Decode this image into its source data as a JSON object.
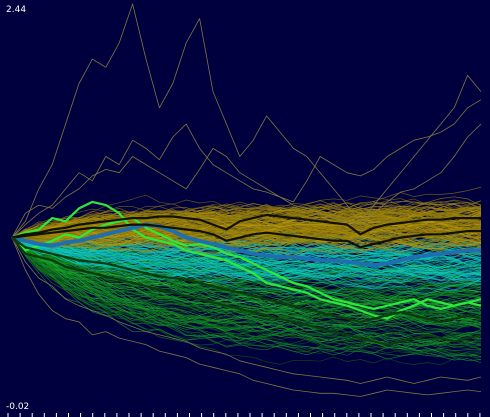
{
  "chart_data": {
    "type": "line",
    "y_max_label": "2.44",
    "y_min_label": "-0.02",
    "ylim": [
      -0.02,
      2.44
    ],
    "x_count": 36,
    "grid": false,
    "legend": "none",
    "colors": {
      "background": "#01003f",
      "yellow_band": "#b39400",
      "yellow_band_alt": "#8f7a10",
      "cyan_band": "#00d4c8",
      "green_band": "#12a12a",
      "green_bright": "#33ff44",
      "blue_bold": "#1f6fb0",
      "outliers": "#8a8440",
      "axis": "#ffffff"
    },
    "bold_series": [
      {
        "color": "#2ee83a",
        "values": [
          1.0,
          1.03,
          1.05,
          1.12,
          1.1,
          1.18,
          1.22,
          1.2,
          1.15,
          1.05,
          1.0,
          0.98,
          0.96,
          0.92,
          0.9,
          0.88,
          0.86,
          0.82,
          0.78,
          0.72,
          0.7,
          0.68,
          0.66,
          0.62,
          0.6,
          0.58,
          0.55,
          0.52,
          0.5,
          0.55,
          0.58,
          0.62,
          0.6,
          0.58,
          0.6,
          0.62
        ]
      },
      {
        "color": "#2ee83a",
        "values": [
          1.0,
          0.92,
          0.95,
          0.98,
          1.02,
          1.0,
          1.05,
          1.08,
          1.1,
          1.12,
          1.06,
          1.02,
          0.98,
          0.95,
          0.96,
          0.94,
          0.9,
          0.88,
          0.84,
          0.8,
          0.76,
          0.72,
          0.7,
          0.66,
          0.62,
          0.6,
          0.58,
          0.56,
          0.58,
          0.6,
          0.62,
          0.58,
          0.56,
          0.58,
          0.6,
          0.58
        ]
      },
      {
        "color": "#1f6fb0",
        "values": [
          1.0,
          0.98,
          0.96,
          0.95,
          0.97,
          0.98,
          1.0,
          1.02,
          1.04,
          1.06,
          1.08,
          1.07,
          1.04,
          1.0,
          0.98,
          0.96,
          0.94,
          0.92,
          0.9,
          0.89,
          0.88,
          0.88,
          0.87,
          0.86,
          0.86,
          0.85,
          0.84,
          0.83,
          0.84,
          0.86,
          0.88,
          0.89,
          0.9,
          0.91,
          0.92,
          0.92
        ]
      },
      {
        "color": "#111100",
        "values": [
          1.0,
          1.02,
          1.03,
          1.05,
          1.06,
          1.08,
          1.09,
          1.1,
          1.11,
          1.12,
          1.12,
          1.13,
          1.13,
          1.12,
          1.11,
          1.08,
          1.05,
          1.1,
          1.12,
          1.14,
          1.13,
          1.12,
          1.11,
          1.1,
          1.09,
          1.08,
          1.02,
          1.06,
          1.08,
          1.09,
          1.1,
          1.11,
          1.11,
          1.12,
          1.12,
          1.12
        ]
      },
      {
        "color": "#111100",
        "values": [
          1.0,
          1.01,
          1.02,
          1.03,
          1.04,
          1.05,
          1.06,
          1.06,
          1.07,
          1.08,
          1.08,
          1.07,
          1.06,
          1.05,
          1.04,
          1.02,
          0.98,
          1.0,
          1.02,
          1.03,
          1.02,
          1.01,
          1.0,
          0.99,
          0.98,
          0.98,
          0.94,
          0.96,
          0.98,
          1.0,
          1.01,
          1.02,
          1.02,
          1.03,
          1.04,
          1.04
        ]
      },
      {
        "color": "#0c3b0c",
        "values": [
          1.0,
          0.9,
          0.88,
          0.86,
          0.82,
          0.8,
          0.78,
          0.76,
          0.74,
          0.72,
          0.7,
          0.68,
          0.66,
          0.64,
          0.62,
          0.6,
          0.58,
          0.56,
          0.54,
          0.52,
          0.5,
          0.48,
          0.46,
          0.44,
          0.42,
          0.4,
          0.38,
          0.36,
          0.34,
          0.36,
          0.38,
          0.4,
          0.38,
          0.36,
          0.38,
          0.4
        ]
      },
      {
        "color": "#0c3b0c",
        "values": [
          1.0,
          0.94,
          0.92,
          0.9,
          0.88,
          0.86,
          0.85,
          0.84,
          0.82,
          0.8,
          0.78,
          0.76,
          0.75,
          0.74,
          0.72,
          0.7,
          0.68,
          0.66,
          0.64,
          0.62,
          0.6,
          0.58,
          0.56,
          0.54,
          0.52,
          0.5,
          0.48,
          0.5,
          0.52,
          0.54,
          0.52,
          0.5,
          0.48,
          0.5,
          0.52,
          0.5
        ]
      }
    ],
    "outlier_series": [
      {
        "values": [
          1.0,
          1.1,
          1.3,
          1.45,
          1.7,
          1.95,
          2.1,
          2.05,
          2.2,
          2.44,
          2.1,
          1.8,
          1.95,
          2.2,
          2.35,
          1.9,
          1.7,
          1.5,
          1.6,
          1.75,
          1.65,
          1.55,
          1.5,
          1.4,
          1.3,
          1.2,
          1.1,
          1.2,
          1.3,
          1.4,
          1.5,
          1.6,
          1.7,
          1.8,
          2.0,
          1.9
        ]
      },
      {
        "values": [
          1.0,
          1.08,
          1.15,
          1.2,
          1.3,
          1.4,
          1.35,
          1.5,
          1.45,
          1.6,
          1.55,
          1.48,
          1.62,
          1.7,
          1.55,
          1.45,
          1.4,
          1.35,
          1.3,
          1.28,
          1.25,
          1.22,
          1.35,
          1.5,
          1.45,
          1.4,
          1.38,
          1.42,
          1.5,
          1.55,
          1.6,
          1.62,
          1.65,
          1.7,
          1.8,
          1.85
        ]
      },
      {
        "values": [
          1.0,
          1.15,
          1.2,
          1.18,
          1.25,
          1.3,
          1.38,
          1.42,
          1.4,
          1.5,
          1.45,
          1.4,
          1.35,
          1.3,
          1.42,
          1.55,
          1.5,
          1.4,
          1.35,
          1.3,
          1.25,
          1.2,
          1.18,
          1.15,
          1.12,
          1.1,
          1.08,
          1.15,
          1.22,
          1.28,
          1.3,
          1.35,
          1.4,
          1.5,
          1.62,
          1.7
        ]
      },
      {
        "values": [
          1.0,
          0.8,
          0.65,
          0.55,
          0.5,
          0.48,
          0.4,
          0.42,
          0.38,
          0.36,
          0.34,
          0.3,
          0.28,
          0.26,
          0.22,
          0.2,
          0.18,
          0.16,
          0.12,
          0.1,
          0.08,
          0.06,
          0.05,
          0.04,
          0.04,
          0.03,
          0.02,
          0.04,
          0.06,
          0.05,
          0.04,
          0.03,
          0.04,
          0.05,
          0.06,
          0.05
        ]
      },
      {
        "values": [
          1.0,
          0.85,
          0.75,
          0.7,
          0.62,
          0.58,
          0.55,
          0.52,
          0.48,
          0.45,
          0.42,
          0.4,
          0.38,
          0.36,
          0.32,
          0.3,
          0.28,
          0.24,
          0.22,
          0.2,
          0.18,
          0.16,
          0.15,
          0.14,
          0.13,
          0.12,
          0.1,
          0.12,
          0.14,
          0.12,
          0.1,
          0.12,
          0.14,
          0.13,
          0.12,
          0.14
        ]
      }
    ]
  }
}
